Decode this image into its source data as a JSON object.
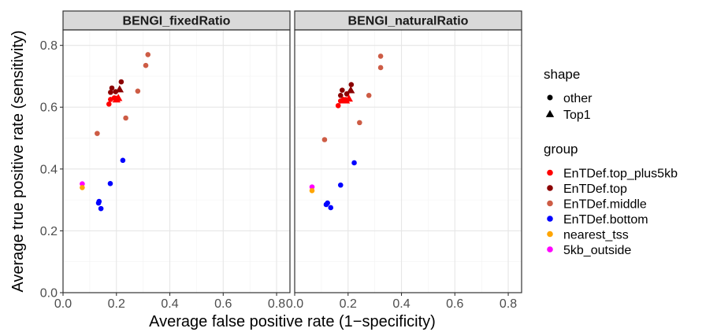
{
  "chart_data": {
    "type": "scatter",
    "xlabel": "Average false positive rate (1−specificity)",
    "ylabel": "Average true positive rate (sensitivity)",
    "xlim": [
      0,
      0.85
    ],
    "ylim": [
      0,
      0.85
    ],
    "x_ticks": [
      0.0,
      0.2,
      0.4,
      0.6,
      0.8
    ],
    "x_tick_labels": [
      "0.0",
      "0.2",
      "0.4",
      "0.6",
      "0.8"
    ],
    "y_ticks": [
      0.0,
      0.2,
      0.4,
      0.6,
      0.8
    ],
    "y_tick_labels": [
      "0.0",
      "0.2",
      "0.4",
      "0.6",
      "0.8"
    ],
    "grid": true,
    "legend_placement": "right",
    "shape_legend": {
      "title": "shape",
      "items": [
        {
          "label": "other",
          "marker": "circle"
        },
        {
          "label": "Top1",
          "marker": "triangle"
        }
      ]
    },
    "group_legend": {
      "title": "group",
      "items": [
        {
          "label": "EnTDef.top_plus5kb",
          "color": "#ff0000"
        },
        {
          "label": "EnTDef.top",
          "color": "#8b0000"
        },
        {
          "label": "EnTDef.middle",
          "color": "#cd5c45"
        },
        {
          "label": "EnTDef.bottom",
          "color": "#0000ff"
        },
        {
          "label": "nearest_tss",
          "color": "#ffa500"
        },
        {
          "label": "5kb_outside",
          "color": "#ff00ff"
        }
      ]
    },
    "panels": [
      {
        "title": "BENGI_fixedRatio",
        "points": [
          {
            "x": 0.072,
            "y": 0.352,
            "group": "5kb_outside",
            "shape": "other"
          },
          {
            "x": 0.072,
            "y": 0.34,
            "group": "nearest_tss",
            "shape": "other"
          },
          {
            "x": 0.133,
            "y": 0.29,
            "group": "EnTDef.bottom",
            "shape": "other"
          },
          {
            "x": 0.135,
            "y": 0.295,
            "group": "EnTDef.bottom",
            "shape": "other"
          },
          {
            "x": 0.142,
            "y": 0.272,
            "group": "EnTDef.bottom",
            "shape": "other"
          },
          {
            "x": 0.177,
            "y": 0.353,
            "group": "EnTDef.bottom",
            "shape": "other"
          },
          {
            "x": 0.224,
            "y": 0.428,
            "group": "EnTDef.bottom",
            "shape": "other"
          },
          {
            "x": 0.128,
            "y": 0.515,
            "group": "EnTDef.middle",
            "shape": "other"
          },
          {
            "x": 0.235,
            "y": 0.565,
            "group": "EnTDef.middle",
            "shape": "other"
          },
          {
            "x": 0.28,
            "y": 0.652,
            "group": "EnTDef.middle",
            "shape": "other"
          },
          {
            "x": 0.31,
            "y": 0.735,
            "group": "EnTDef.middle",
            "shape": "other"
          },
          {
            "x": 0.318,
            "y": 0.77,
            "group": "EnTDef.middle",
            "shape": "other"
          },
          {
            "x": 0.172,
            "y": 0.61,
            "group": "EnTDef.top_plus5kb",
            "shape": "other"
          },
          {
            "x": 0.178,
            "y": 0.625,
            "group": "EnTDef.top_plus5kb",
            "shape": "other"
          },
          {
            "x": 0.192,
            "y": 0.63,
            "group": "EnTDef.top_plus5kb",
            "shape": "other"
          },
          {
            "x": 0.2,
            "y": 0.625,
            "group": "EnTDef.top_plus5kb",
            "shape": "Top1"
          },
          {
            "x": 0.207,
            "y": 0.63,
            "group": "EnTDef.top_plus5kb",
            "shape": "Top1"
          },
          {
            "x": 0.178,
            "y": 0.648,
            "group": "EnTDef.top",
            "shape": "other"
          },
          {
            "x": 0.183,
            "y": 0.662,
            "group": "EnTDef.top",
            "shape": "other"
          },
          {
            "x": 0.197,
            "y": 0.65,
            "group": "EnTDef.top",
            "shape": "other"
          },
          {
            "x": 0.212,
            "y": 0.658,
            "group": "EnTDef.top",
            "shape": "Top1"
          },
          {
            "x": 0.218,
            "y": 0.682,
            "group": "EnTDef.top",
            "shape": "other"
          }
        ]
      },
      {
        "title": "BENGI_naturalRatio",
        "points": [
          {
            "x": 0.065,
            "y": 0.342,
            "group": "5kb_outside",
            "shape": "other"
          },
          {
            "x": 0.065,
            "y": 0.33,
            "group": "nearest_tss",
            "shape": "other"
          },
          {
            "x": 0.118,
            "y": 0.285,
            "group": "EnTDef.bottom",
            "shape": "other"
          },
          {
            "x": 0.123,
            "y": 0.29,
            "group": "EnTDef.bottom",
            "shape": "other"
          },
          {
            "x": 0.135,
            "y": 0.275,
            "group": "EnTDef.bottom",
            "shape": "other"
          },
          {
            "x": 0.172,
            "y": 0.348,
            "group": "EnTDef.bottom",
            "shape": "other"
          },
          {
            "x": 0.223,
            "y": 0.42,
            "group": "EnTDef.bottom",
            "shape": "other"
          },
          {
            "x": 0.112,
            "y": 0.495,
            "group": "EnTDef.middle",
            "shape": "other"
          },
          {
            "x": 0.243,
            "y": 0.55,
            "group": "EnTDef.middle",
            "shape": "other"
          },
          {
            "x": 0.278,
            "y": 0.638,
            "group": "EnTDef.middle",
            "shape": "other"
          },
          {
            "x": 0.322,
            "y": 0.728,
            "group": "EnTDef.middle",
            "shape": "other"
          },
          {
            "x": 0.322,
            "y": 0.765,
            "group": "EnTDef.middle",
            "shape": "other"
          },
          {
            "x": 0.163,
            "y": 0.605,
            "group": "EnTDef.top_plus5kb",
            "shape": "other"
          },
          {
            "x": 0.172,
            "y": 0.62,
            "group": "EnTDef.top_plus5kb",
            "shape": "other"
          },
          {
            "x": 0.183,
            "y": 0.625,
            "group": "EnTDef.top_plus5kb",
            "shape": "other"
          },
          {
            "x": 0.192,
            "y": 0.622,
            "group": "EnTDef.top_plus5kb",
            "shape": "Top1"
          },
          {
            "x": 0.203,
            "y": 0.628,
            "group": "EnTDef.top_plus5kb",
            "shape": "Top1"
          },
          {
            "x": 0.172,
            "y": 0.638,
            "group": "EnTDef.top",
            "shape": "other"
          },
          {
            "x": 0.178,
            "y": 0.655,
            "group": "EnTDef.top",
            "shape": "other"
          },
          {
            "x": 0.195,
            "y": 0.643,
            "group": "EnTDef.top",
            "shape": "other"
          },
          {
            "x": 0.21,
            "y": 0.655,
            "group": "EnTDef.top",
            "shape": "Top1"
          },
          {
            "x": 0.212,
            "y": 0.673,
            "group": "EnTDef.top",
            "shape": "other"
          }
        ]
      }
    ]
  }
}
